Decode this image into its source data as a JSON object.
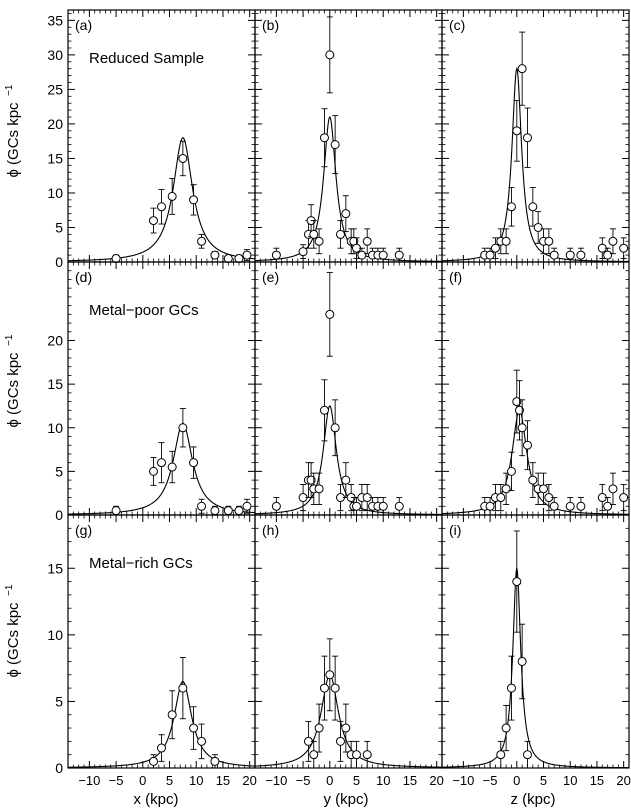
{
  "figure": {
    "xlabels": [
      "x (kpc)",
      "y (kpc)",
      "z (kpc)"
    ],
    "ylabel": "ϕ (GCs kpc",
    "ylabel_sup": "−1",
    "row_labels": [
      "Reduced Sample",
      "Metal−poor GCs",
      "Metal−rich GCs"
    ]
  },
  "chart_data": [
    {
      "type": "scatter",
      "panel": "(a)",
      "row": 0,
      "col": 0,
      "title": "Reduced Sample",
      "xlabel": "",
      "ylabel": "ϕ (GCs kpc−1)",
      "xlim": [
        -14,
        21
      ],
      "ylim": [
        0,
        36.5
      ],
      "xticks": [
        -10,
        -5,
        0,
        5,
        10,
        15,
        20
      ],
      "yticks": [
        0,
        5,
        10,
        15,
        20,
        25,
        30,
        35
      ],
      "x": [
        -5,
        2,
        3.5,
        5.5,
        7.5,
        9.5,
        11,
        13.5,
        16,
        18,
        19.5
      ],
      "y": [
        0.5,
        6,
        8,
        9.5,
        15,
        9,
        3,
        1,
        0.5,
        0.5,
        1
      ],
      "yerr": [
        0.5,
        1.8,
        2.5,
        2.6,
        2.5,
        2.2,
        1,
        0.5,
        0.5,
        0.5,
        0.8
      ],
      "fit": {
        "center": 7.5,
        "peak": 18,
        "width": 2.2
      }
    },
    {
      "type": "scatter",
      "panel": "(b)",
      "row": 0,
      "col": 1,
      "xlabel": "",
      "ylabel": "",
      "xlim": [
        -14,
        21
      ],
      "ylim": [
        0,
        36.5
      ],
      "xticks": [
        -10,
        -5,
        0,
        5,
        10,
        15,
        20
      ],
      "yticks": [
        0,
        5,
        10,
        15,
        20,
        25,
        30,
        35
      ],
      "x": [
        -10,
        -5,
        -4,
        -3.5,
        -3,
        -2,
        -1,
        0,
        1,
        2,
        3,
        4,
        4.5,
        5,
        6,
        7,
        8,
        9,
        10,
        13
      ],
      "y": [
        1,
        1.5,
        4,
        6,
        4,
        3,
        18,
        30,
        17,
        4,
        7,
        3,
        3,
        2,
        1,
        3,
        1,
        1,
        1,
        1
      ],
      "yerr": [
        1,
        1,
        2,
        2.3,
        2,
        1.8,
        4.2,
        5.5,
        4.2,
        2,
        2.6,
        1.8,
        1.8,
        1.5,
        1,
        1.8,
        1,
        1,
        1,
        1
      ],
      "fit": {
        "center": 0,
        "peak": 21,
        "width": 1.4
      }
    },
    {
      "type": "scatter",
      "panel": "(c)",
      "row": 0,
      "col": 2,
      "xlabel": "",
      "ylabel": "",
      "xlim": [
        -14,
        21
      ],
      "ylim": [
        0,
        36.5
      ],
      "xticks": [
        -10,
        -5,
        0,
        5,
        10,
        15,
        20
      ],
      "yticks": [
        0,
        5,
        10,
        15,
        20,
        25,
        30,
        35
      ],
      "x": [
        -6,
        -5,
        -4,
        -3,
        -2,
        -1,
        0,
        1,
        2,
        3,
        4,
        5,
        6,
        7,
        10,
        12,
        16,
        17,
        18,
        20
      ],
      "y": [
        1,
        1,
        2,
        3,
        3,
        8,
        19,
        28,
        18,
        8,
        5,
        3,
        3,
        1,
        1,
        1,
        2,
        1,
        3,
        2
      ],
      "yerr": [
        1,
        1,
        1.5,
        1.8,
        1.8,
        2.8,
        4.4,
        5.3,
        4.3,
        2.8,
        2.3,
        1.8,
        1.8,
        1,
        1,
        1,
        1.5,
        1,
        1.8,
        1.5
      ],
      "fit": {
        "center": 0,
        "peak": 28,
        "width": 1.1
      }
    },
    {
      "type": "scatter",
      "panel": "(d)",
      "row": 1,
      "col": 0,
      "title": "Metal−poor GCs",
      "xlabel": "",
      "ylabel": "ϕ (GCs kpc−1)",
      "xlim": [
        -14,
        21
      ],
      "ylim": [
        0,
        29
      ],
      "xticks": [
        -10,
        -5,
        0,
        5,
        10,
        15,
        20
      ],
      "yticks": [
        0,
        5,
        10,
        15,
        20
      ],
      "x": [
        -5,
        2,
        3.5,
        5.5,
        7.5,
        9.5,
        11,
        13.5,
        16,
        18,
        19.5
      ],
      "y": [
        0.5,
        5,
        6,
        5.5,
        10,
        6,
        1,
        0.5,
        0.5,
        0.5,
        1
      ],
      "yerr": [
        0.5,
        1.6,
        2.3,
        1.8,
        2.2,
        1.8,
        0.8,
        0.5,
        0.5,
        0.5,
        0.8
      ],
      "fit": {
        "center": 7.5,
        "peak": 10.5,
        "width": 2.2
      }
    },
    {
      "type": "scatter",
      "panel": "(e)",
      "row": 1,
      "col": 1,
      "xlabel": "",
      "ylabel": "",
      "xlim": [
        -14,
        21
      ],
      "ylim": [
        0,
        29
      ],
      "xticks": [
        -10,
        -5,
        0,
        5,
        10,
        15,
        20
      ],
      "yticks": [
        0,
        5,
        10,
        15,
        20
      ],
      "x": [
        -10,
        -5,
        -4,
        -3.5,
        -3,
        -2,
        -1,
        0,
        1,
        2,
        3,
        4,
        4.5,
        5,
        6,
        7,
        8,
        9,
        10,
        13
      ],
      "y": [
        1,
        2,
        4,
        4,
        3,
        3,
        12,
        23,
        10,
        2,
        4,
        2,
        1,
        1,
        2,
        2,
        1,
        1,
        1,
        1
      ],
      "yerr": [
        1,
        1.5,
        2,
        2,
        1.8,
        1.8,
        3.5,
        4.8,
        3.2,
        1.5,
        2,
        1.5,
        1,
        1,
        1.5,
        1.5,
        1,
        1,
        1,
        1
      ],
      "fit": {
        "center": 0,
        "peak": 12.5,
        "width": 1.5
      }
    },
    {
      "type": "scatter",
      "panel": "(f)",
      "row": 1,
      "col": 2,
      "xlabel": "",
      "ylabel": "",
      "xlim": [
        -14,
        21
      ],
      "ylim": [
        0,
        29
      ],
      "xticks": [
        -10,
        -5,
        0,
        5,
        10,
        15,
        20
      ],
      "yticks": [
        0,
        5,
        10,
        15,
        20
      ],
      "x": [
        -6,
        -5,
        -4,
        -3,
        -2,
        -1,
        0,
        0.5,
        1,
        2,
        3,
        4,
        5,
        6,
        7,
        10,
        12,
        16,
        17,
        18,
        20
      ],
      "y": [
        1,
        1,
        2,
        2,
        3,
        5,
        13,
        12,
        10,
        8,
        4,
        3,
        3,
        2,
        1,
        1,
        1,
        2,
        1,
        3,
        2
      ],
      "yerr": [
        1,
        1,
        1.5,
        1.5,
        1.8,
        2.2,
        3.6,
        3.4,
        3.2,
        2.8,
        2,
        1.8,
        1.8,
        1.5,
        1,
        1,
        1,
        1.5,
        1,
        1.8,
        1.5
      ],
      "fit": {
        "center": 0.5,
        "peak": 12,
        "width": 1.7
      }
    },
    {
      "type": "scatter",
      "panel": "(g)",
      "row": 2,
      "col": 0,
      "title": "Metal−rich GCs",
      "xlabel": "x (kpc)",
      "ylabel": "ϕ (GCs kpc−1)",
      "xlim": [
        -14,
        21
      ],
      "ylim": [
        0,
        19
      ],
      "xticks": [
        -10,
        -5,
        0,
        5,
        10,
        15,
        20
      ],
      "yticks": [
        0,
        5,
        10,
        15
      ],
      "x": [
        2,
        3.5,
        5.5,
        7.5,
        9.5,
        11,
        13.5
      ],
      "y": [
        0.5,
        1.5,
        4,
        6,
        3,
        2,
        0.5
      ],
      "yerr": [
        0.5,
        1,
        1.8,
        2.3,
        1.6,
        1.3,
        0.5
      ],
      "fit": {
        "center": 7.5,
        "peak": 6.5,
        "width": 2
      }
    },
    {
      "type": "scatter",
      "panel": "(h)",
      "row": 2,
      "col": 1,
      "xlabel": "y (kpc)",
      "ylabel": "",
      "xlim": [
        -14,
        21
      ],
      "ylim": [
        0,
        19
      ],
      "xticks": [
        -10,
        -5,
        0,
        5,
        10,
        15,
        20
      ],
      "yticks": [
        0,
        5,
        10,
        15
      ],
      "x": [
        -4,
        -3,
        -2,
        -1,
        0,
        1,
        2,
        3,
        4,
        5,
        7
      ],
      "y": [
        2,
        1,
        3,
        6,
        7,
        6,
        2,
        3,
        1,
        1,
        1
      ],
      "yerr": [
        1.5,
        1,
        1.8,
        2.4,
        2.7,
        2.4,
        1.5,
        1.8,
        1,
        1,
        1
      ],
      "fit": {
        "center": 0,
        "peak": 7,
        "width": 2
      }
    },
    {
      "type": "scatter",
      "panel": "(i)",
      "row": 2,
      "col": 2,
      "xlabel": "z (kpc)",
      "ylabel": "",
      "xlim": [
        -14,
        21
      ],
      "ylim": [
        0,
        19
      ],
      "xticks": [
        -10,
        -5,
        0,
        5,
        10,
        15,
        20
      ],
      "yticks": [
        0,
        5,
        10,
        15
      ],
      "x": [
        -3,
        -2,
        -1,
        0,
        1,
        2
      ],
      "y": [
        1,
        3,
        6,
        14,
        8,
        1
      ],
      "yerr": [
        1,
        1.7,
        2.4,
        3.8,
        2.8,
        1
      ],
      "fit": {
        "center": 0,
        "peak": 15,
        "width": 0.9
      }
    }
  ]
}
